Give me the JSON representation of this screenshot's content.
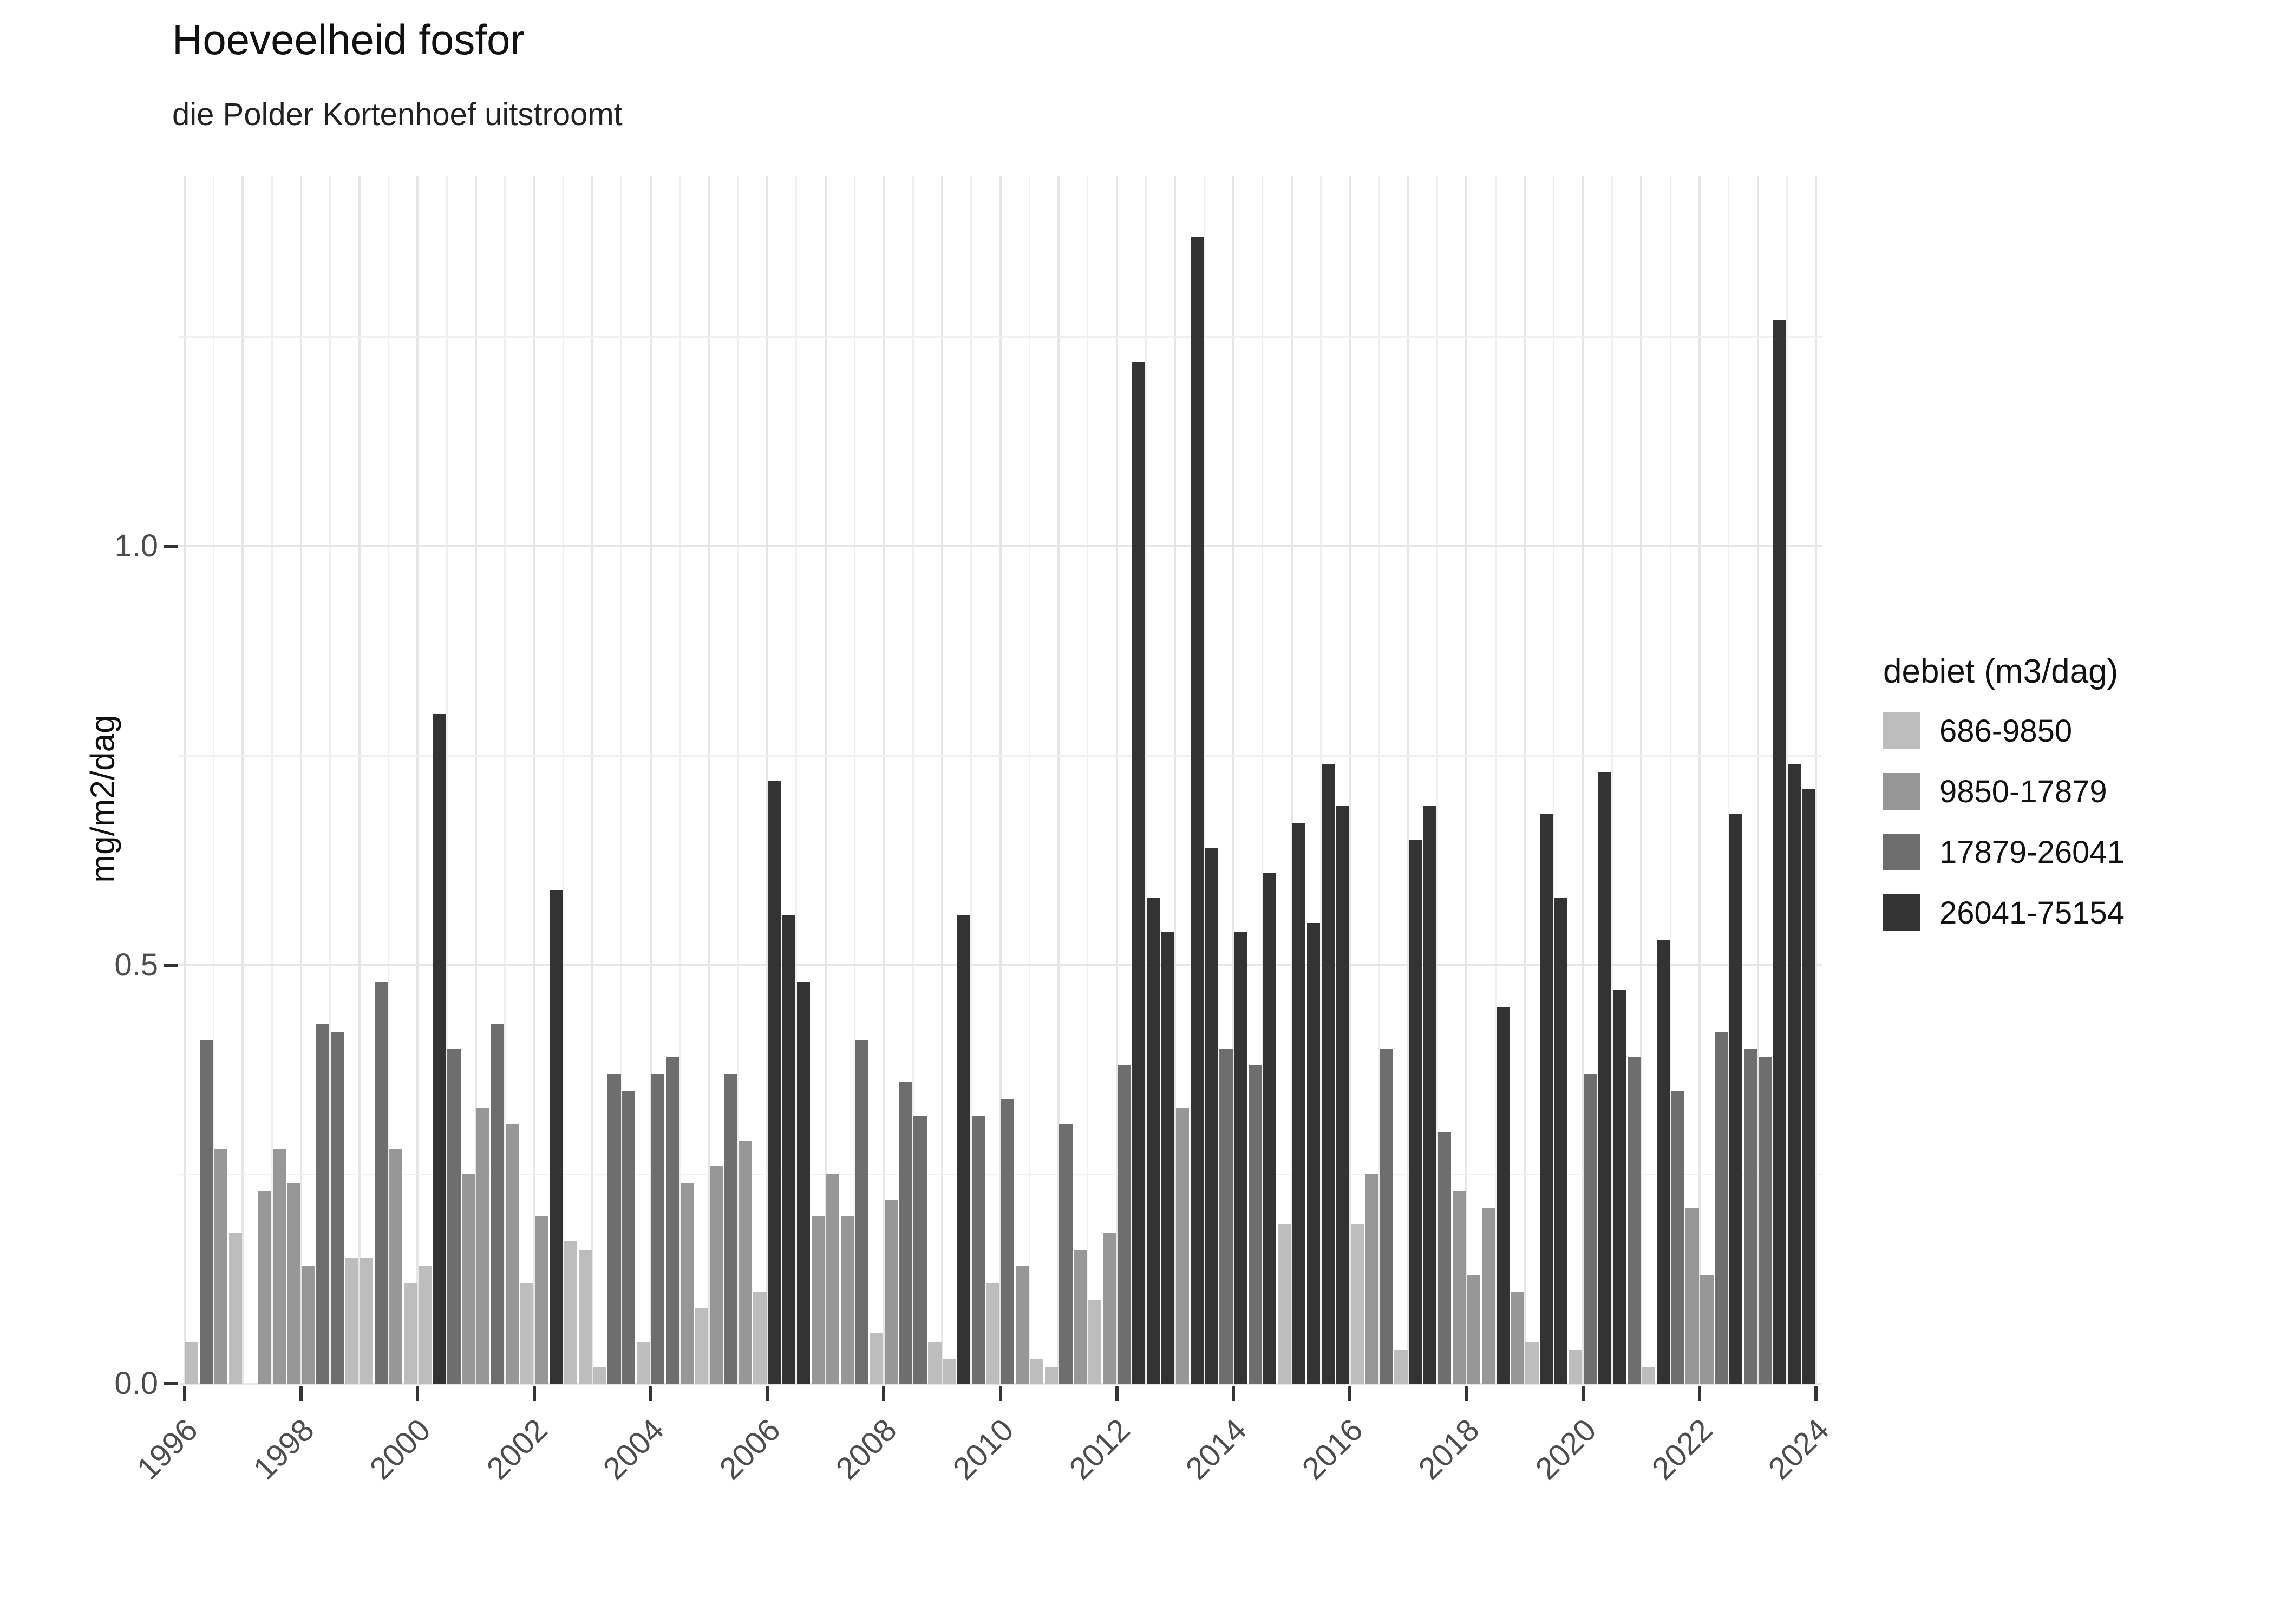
{
  "title": "Hoeveelheid fosfor",
  "subtitle": "die Polder Kortenhoef uitstroomt",
  "y_axis_title": "mg/m2/dag",
  "legend": {
    "title": "debiet (m3/dag)",
    "entries": [
      {
        "label": "686-9850",
        "color": "#bdbdbd"
      },
      {
        "label": "9850-17879",
        "color": "#979797"
      },
      {
        "label": "17879-26041",
        "color": "#6e6e6e"
      },
      {
        "label": "26041-75154",
        "color": "#333333"
      }
    ]
  },
  "chart_data": {
    "type": "bar",
    "title": "Hoeveelheid fosfor",
    "subtitle": "die Polder Kortenhoef uitstroomt",
    "xlabel": "",
    "ylabel": "mg/m2/dag",
    "legend_title": "debiet (m3/dag)",
    "legend_position": "right",
    "grid": true,
    "xlim": [
      1995.9,
      2024.1
    ],
    "ylim": [
      0,
      1.4425
    ],
    "x_tick_labels": [
      "1996",
      "1998",
      "2000",
      "2002",
      "2004",
      "2006",
      "2008",
      "2010",
      "2012",
      "2014",
      "2016",
      "2018",
      "2020",
      "2022",
      "2024"
    ],
    "y_tick_labels": [
      "0.0",
      "0.5",
      "1.0"
    ],
    "y_ticks": [
      0,
      0.5,
      1.0
    ],
    "y_minor_gridlines": [
      0.25,
      0.75,
      1.25
    ],
    "group_colors": {
      "1": "#bdbdbd",
      "2": "#979797",
      "3": "#6e6e6e",
      "4": "#333333"
    },
    "group_labels": {
      "1": "686-9850",
      "2": "9850-17879",
      "3": "17879-26041",
      "4": "26041-75154"
    },
    "bar_unit": "quarter",
    "bars": [
      {
        "year": 1996,
        "q": 1,
        "value": 0.05,
        "group": 1
      },
      {
        "year": 1996,
        "q": 2,
        "value": 0.41,
        "group": 3
      },
      {
        "year": 1996,
        "q": 3,
        "value": 0.28,
        "group": 2
      },
      {
        "year": 1996,
        "q": 4,
        "value": 0.18,
        "group": 1
      },
      {
        "year": 1997,
        "q": 2,
        "value": 0.23,
        "group": 2
      },
      {
        "year": 1997,
        "q": 3,
        "value": 0.28,
        "group": 2
      },
      {
        "year": 1997,
        "q": 4,
        "value": 0.24,
        "group": 2
      },
      {
        "year": 1998,
        "q": 1,
        "value": 0.14,
        "group": 2
      },
      {
        "year": 1998,
        "q": 2,
        "value": 0.43,
        "group": 3
      },
      {
        "year": 1998,
        "q": 3,
        "value": 0.42,
        "group": 3
      },
      {
        "year": 1998,
        "q": 4,
        "value": 0.15,
        "group": 1
      },
      {
        "year": 1999,
        "q": 1,
        "value": 0.15,
        "group": 1
      },
      {
        "year": 1999,
        "q": 2,
        "value": 0.48,
        "group": 3
      },
      {
        "year": 1999,
        "q": 3,
        "value": 0.28,
        "group": 2
      },
      {
        "year": 1999,
        "q": 4,
        "value": 0.12,
        "group": 1
      },
      {
        "year": 2000,
        "q": 1,
        "value": 0.14,
        "group": 1
      },
      {
        "year": 2000,
        "q": 2,
        "value": 0.8,
        "group": 4
      },
      {
        "year": 2000,
        "q": 3,
        "value": 0.4,
        "group": 3
      },
      {
        "year": 2000,
        "q": 4,
        "value": 0.25,
        "group": 2
      },
      {
        "year": 2001,
        "q": 1,
        "value": 0.33,
        "group": 2
      },
      {
        "year": 2001,
        "q": 2,
        "value": 0.43,
        "group": 3
      },
      {
        "year": 2001,
        "q": 3,
        "value": 0.31,
        "group": 2
      },
      {
        "year": 2001,
        "q": 4,
        "value": 0.12,
        "group": 1
      },
      {
        "year": 2002,
        "q": 1,
        "value": 0.2,
        "group": 2
      },
      {
        "year": 2002,
        "q": 2,
        "value": 0.59,
        "group": 4
      },
      {
        "year": 2002,
        "q": 3,
        "value": 0.17,
        "group": 1
      },
      {
        "year": 2002,
        "q": 4,
        "value": 0.16,
        "group": 1
      },
      {
        "year": 2003,
        "q": 1,
        "value": 0.02,
        "group": 1
      },
      {
        "year": 2003,
        "q": 2,
        "value": 0.37,
        "group": 3
      },
      {
        "year": 2003,
        "q": 3,
        "value": 0.35,
        "group": 3
      },
      {
        "year": 2003,
        "q": 4,
        "value": 0.05,
        "group": 1
      },
      {
        "year": 2004,
        "q": 1,
        "value": 0.37,
        "group": 3
      },
      {
        "year": 2004,
        "q": 2,
        "value": 0.39,
        "group": 3
      },
      {
        "year": 2004,
        "q": 3,
        "value": 0.24,
        "group": 2
      },
      {
        "year": 2004,
        "q": 4,
        "value": 0.09,
        "group": 1
      },
      {
        "year": 2005,
        "q": 1,
        "value": 0.26,
        "group": 2
      },
      {
        "year": 2005,
        "q": 2,
        "value": 0.37,
        "group": 3
      },
      {
        "year": 2005,
        "q": 3,
        "value": 0.29,
        "group": 2
      },
      {
        "year": 2005,
        "q": 4,
        "value": 0.11,
        "group": 1
      },
      {
        "year": 2006,
        "q": 1,
        "value": 0.72,
        "group": 4
      },
      {
        "year": 2006,
        "q": 2,
        "value": 0.56,
        "group": 4
      },
      {
        "year": 2006,
        "q": 3,
        "value": 0.48,
        "group": 4
      },
      {
        "year": 2006,
        "q": 4,
        "value": 0.2,
        "group": 2
      },
      {
        "year": 2007,
        "q": 1,
        "value": 0.25,
        "group": 2
      },
      {
        "year": 2007,
        "q": 2,
        "value": 0.2,
        "group": 2
      },
      {
        "year": 2007,
        "q": 3,
        "value": 0.41,
        "group": 3
      },
      {
        "year": 2007,
        "q": 4,
        "value": 0.06,
        "group": 1
      },
      {
        "year": 2008,
        "q": 1,
        "value": 0.22,
        "group": 2
      },
      {
        "year": 2008,
        "q": 2,
        "value": 0.36,
        "group": 3
      },
      {
        "year": 2008,
        "q": 3,
        "value": 0.32,
        "group": 3
      },
      {
        "year": 2008,
        "q": 4,
        "value": 0.05,
        "group": 1
      },
      {
        "year": 2009,
        "q": 1,
        "value": 0.03,
        "group": 1
      },
      {
        "year": 2009,
        "q": 2,
        "value": 0.56,
        "group": 4
      },
      {
        "year": 2009,
        "q": 3,
        "value": 0.32,
        "group": 3
      },
      {
        "year": 2009,
        "q": 4,
        "value": 0.12,
        "group": 1
      },
      {
        "year": 2010,
        "q": 1,
        "value": 0.34,
        "group": 3
      },
      {
        "year": 2010,
        "q": 2,
        "value": 0.14,
        "group": 2
      },
      {
        "year": 2010,
        "q": 3,
        "value": 0.03,
        "group": 1
      },
      {
        "year": 2010,
        "q": 4,
        "value": 0.02,
        "group": 1
      },
      {
        "year": 2011,
        "q": 1,
        "value": 0.31,
        "group": 3
      },
      {
        "year": 2011,
        "q": 2,
        "value": 0.16,
        "group": 2
      },
      {
        "year": 2011,
        "q": 3,
        "value": 0.1,
        "group": 1
      },
      {
        "year": 2011,
        "q": 4,
        "value": 0.18,
        "group": 2
      },
      {
        "year": 2012,
        "q": 1,
        "value": 0.38,
        "group": 3
      },
      {
        "year": 2012,
        "q": 2,
        "value": 1.22,
        "group": 4
      },
      {
        "year": 2012,
        "q": 3,
        "value": 0.58,
        "group": 4
      },
      {
        "year": 2012,
        "q": 4,
        "value": 0.54,
        "group": 4
      },
      {
        "year": 2013,
        "q": 1,
        "value": 0.33,
        "group": 2
      },
      {
        "year": 2013,
        "q": 2,
        "value": 1.37,
        "group": 4
      },
      {
        "year": 2013,
        "q": 3,
        "value": 0.64,
        "group": 4
      },
      {
        "year": 2013,
        "q": 4,
        "value": 0.4,
        "group": 3
      },
      {
        "year": 2014,
        "q": 1,
        "value": 0.54,
        "group": 4
      },
      {
        "year": 2014,
        "q": 2,
        "value": 0.38,
        "group": 3
      },
      {
        "year": 2014,
        "q": 3,
        "value": 0.61,
        "group": 4
      },
      {
        "year": 2014,
        "q": 4,
        "value": 0.19,
        "group": 1
      },
      {
        "year": 2015,
        "q": 1,
        "value": 0.67,
        "group": 4
      },
      {
        "year": 2015,
        "q": 2,
        "value": 0.55,
        "group": 4
      },
      {
        "year": 2015,
        "q": 3,
        "value": 0.74,
        "group": 4
      },
      {
        "year": 2015,
        "q": 4,
        "value": 0.69,
        "group": 4
      },
      {
        "year": 2016,
        "q": 1,
        "value": 0.19,
        "group": 1
      },
      {
        "year": 2016,
        "q": 2,
        "value": 0.25,
        "group": 2
      },
      {
        "year": 2016,
        "q": 3,
        "value": 0.4,
        "group": 3
      },
      {
        "year": 2016,
        "q": 4,
        "value": 0.04,
        "group": 1
      },
      {
        "year": 2017,
        "q": 1,
        "value": 0.65,
        "group": 4
      },
      {
        "year": 2017,
        "q": 2,
        "value": 0.69,
        "group": 4
      },
      {
        "year": 2017,
        "q": 3,
        "value": 0.3,
        "group": 3
      },
      {
        "year": 2017,
        "q": 4,
        "value": 0.23,
        "group": 2
      },
      {
        "year": 2018,
        "q": 1,
        "value": 0.13,
        "group": 2
      },
      {
        "year": 2018,
        "q": 2,
        "value": 0.21,
        "group": 2
      },
      {
        "year": 2018,
        "q": 3,
        "value": 0.45,
        "group": 4
      },
      {
        "year": 2018,
        "q": 4,
        "value": 0.11,
        "group": 2
      },
      {
        "year": 2019,
        "q": 1,
        "value": 0.05,
        "group": 1
      },
      {
        "year": 2019,
        "q": 2,
        "value": 0.68,
        "group": 4
      },
      {
        "year": 2019,
        "q": 3,
        "value": 0.58,
        "group": 4
      },
      {
        "year": 2019,
        "q": 4,
        "value": 0.04,
        "group": 1
      },
      {
        "year": 2020,
        "q": 1,
        "value": 0.37,
        "group": 3
      },
      {
        "year": 2020,
        "q": 2,
        "value": 0.73,
        "group": 4
      },
      {
        "year": 2020,
        "q": 3,
        "value": 0.47,
        "group": 4
      },
      {
        "year": 2020,
        "q": 4,
        "value": 0.39,
        "group": 3
      },
      {
        "year": 2021,
        "q": 1,
        "value": 0.02,
        "group": 1
      },
      {
        "year": 2021,
        "q": 2,
        "value": 0.53,
        "group": 4
      },
      {
        "year": 2021,
        "q": 3,
        "value": 0.35,
        "group": 3
      },
      {
        "year": 2021,
        "q": 4,
        "value": 0.21,
        "group": 2
      },
      {
        "year": 2022,
        "q": 1,
        "value": 0.13,
        "group": 2
      },
      {
        "year": 2022,
        "q": 2,
        "value": 0.42,
        "group": 3
      },
      {
        "year": 2022,
        "q": 3,
        "value": 0.68,
        "group": 4
      },
      {
        "year": 2022,
        "q": 4,
        "value": 0.4,
        "group": 3
      },
      {
        "year": 2023,
        "q": 1,
        "value": 0.39,
        "group": 3
      },
      {
        "year": 2023,
        "q": 2,
        "value": 1.27,
        "group": 4
      },
      {
        "year": 2023,
        "q": 3,
        "value": 0.74,
        "group": 4
      },
      {
        "year": 2023,
        "q": 4,
        "value": 0.71,
        "group": 4
      }
    ]
  }
}
